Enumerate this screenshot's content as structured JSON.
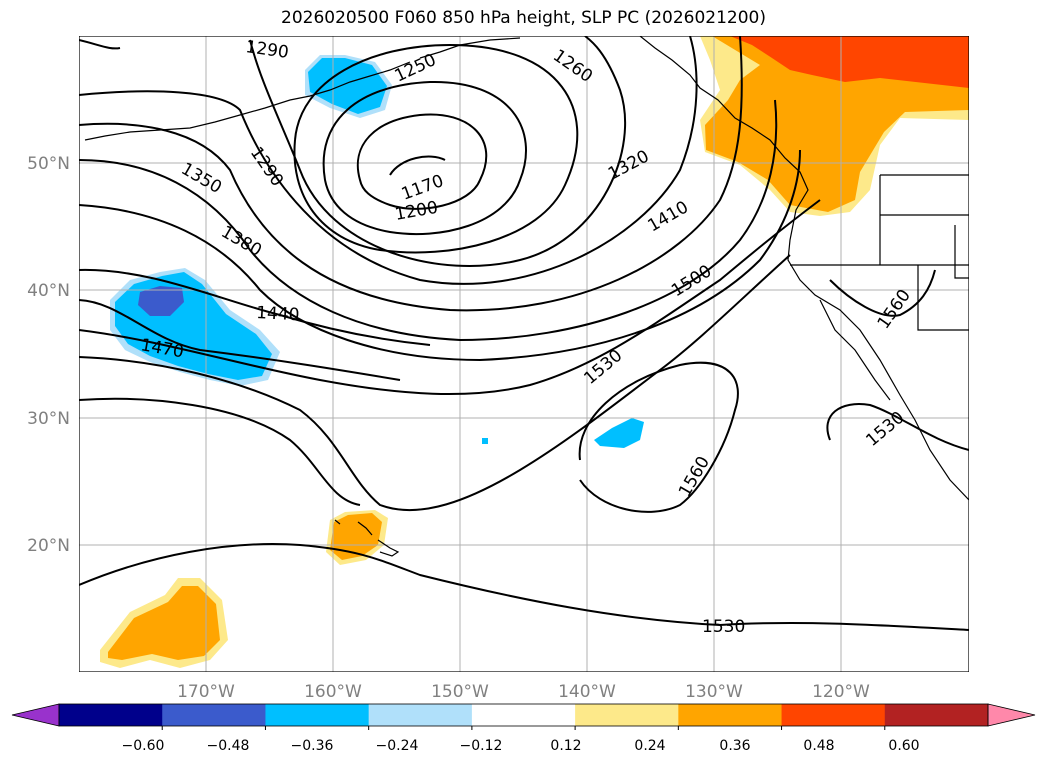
{
  "title": "2026020500 F060 850 hPa height, SLP PC (2026021200)",
  "lat_ticks": [
    "50°N",
    "40°N",
    "30°N",
    "20°N"
  ],
  "lon_ticks": [
    "170°W",
    "160°W",
    "150°W",
    "140°W",
    "130°W",
    "120°W"
  ],
  "contour_labels": [
    "1290",
    "1250",
    "1260",
    "1290",
    "1350",
    "1170",
    "1200",
    "1320",
    "1410",
    "1380",
    "1440",
    "1500",
    "1470",
    "1530",
    "1560",
    "1560",
    "1530",
    "1530"
  ],
  "colorbar": {
    "ticks": [
      "−0.60",
      "−0.48",
      "−0.36",
      "−0.24",
      "−0.12",
      "0.12",
      "0.24",
      "0.36",
      "0.48",
      "0.60"
    ],
    "colors": [
      "#9932cc",
      "#00008b",
      "#3b5bcc",
      "#00bfff",
      "#b0e0fa",
      "#ffffff",
      "#fde98a",
      "#ffa500",
      "#ff4500",
      "#b22222",
      "#ff88aa"
    ]
  },
  "colors": {
    "land_outline": "#000000",
    "contour": "#000000",
    "grid": "#b0b0b0"
  }
}
